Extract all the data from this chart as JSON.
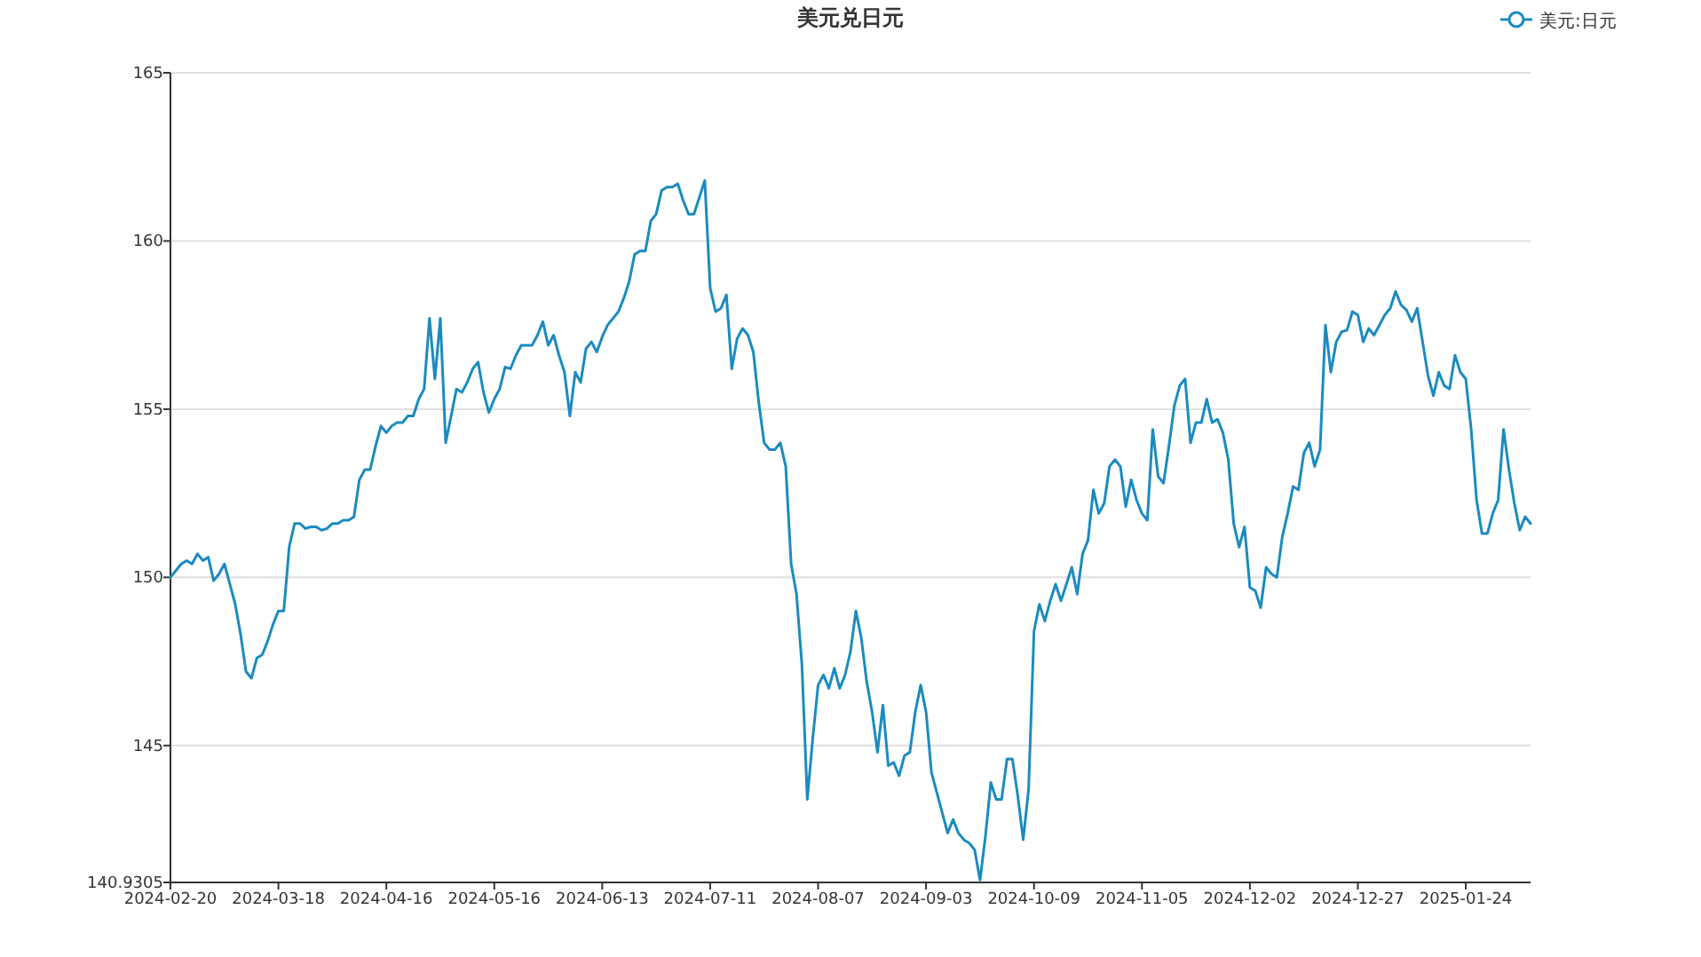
{
  "chart_data": {
    "type": "line",
    "title": "美元兑日元",
    "legend": "top right",
    "grid": "y",
    "ylim": [
      140.9305,
      165
    ],
    "yticks": [
      140.9305,
      145,
      150,
      155,
      160,
      165
    ],
    "categories": [
      "2024-02-20",
      null,
      null,
      null,
      null,
      null,
      null,
      null,
      null,
      null,
      null,
      null,
      null,
      null,
      null,
      null,
      null,
      null,
      null,
      null,
      "2024-03-18",
      null,
      null,
      null,
      null,
      null,
      null,
      null,
      null,
      null,
      null,
      null,
      null,
      null,
      null,
      null,
      null,
      null,
      null,
      null,
      "2024-04-16",
      null,
      null,
      null,
      null,
      null,
      null,
      null,
      null,
      null,
      null,
      null,
      null,
      null,
      null,
      null,
      null,
      null,
      null,
      null,
      "2024-05-16",
      null,
      null,
      null,
      null,
      null,
      null,
      null,
      null,
      null,
      null,
      null,
      null,
      null,
      null,
      null,
      null,
      null,
      null,
      null,
      "2024-06-13",
      null,
      null,
      null,
      null,
      null,
      null,
      null,
      null,
      null,
      null,
      null,
      null,
      null,
      null,
      null,
      null,
      null,
      null,
      null,
      "2024-07-11",
      null,
      null,
      null,
      null,
      null,
      null,
      null,
      null,
      null,
      null,
      null,
      null,
      null,
      null,
      null,
      null,
      null,
      null,
      null,
      "2024-08-07",
      null,
      null,
      null,
      null,
      null,
      null,
      null,
      null,
      null,
      null,
      null,
      null,
      null,
      null,
      null,
      null,
      null,
      null,
      null,
      "2024-09-03",
      null,
      null,
      null,
      null,
      null,
      null,
      null,
      null,
      null,
      null,
      null,
      null,
      null,
      null,
      null,
      null,
      null,
      null,
      null,
      "2024-10-09",
      null,
      null,
      null,
      null,
      null,
      null,
      null,
      null,
      null,
      null,
      null,
      null,
      null,
      null,
      null,
      null,
      null,
      null,
      null,
      "2024-11-05",
      null,
      null,
      null,
      null,
      null,
      null,
      null,
      null,
      null,
      null,
      null,
      null,
      null,
      null,
      null,
      null,
      null,
      null,
      null,
      "2024-12-02",
      null,
      null,
      null,
      null,
      null,
      null,
      null,
      null,
      null,
      null,
      null,
      null,
      null,
      null,
      null,
      null,
      null,
      null,
      null,
      "2024-12-27",
      null,
      null,
      null,
      null,
      null,
      null,
      null,
      null,
      null,
      null,
      null,
      null,
      null,
      null,
      null,
      null,
      null,
      null,
      null,
      "2025-01-24",
      null,
      null,
      null,
      null,
      null,
      null,
      null,
      null,
      null,
      null,
      null,
      null
    ],
    "series": [
      {
        "name": "美元:日元",
        "color": "#1a8bbf",
        "values": [
          150.0,
          150.2,
          150.4,
          150.5,
          150.4,
          150.7,
          150.5,
          150.6,
          149.9,
          150.1,
          150.4,
          149.8,
          149.2,
          148.3,
          147.2,
          147.0,
          147.6,
          147.7,
          148.1,
          148.6,
          149.0,
          149.0,
          150.9,
          151.6,
          151.6,
          151.45,
          151.5,
          151.5,
          151.4,
          151.45,
          151.6,
          151.6,
          151.7,
          151.7,
          151.8,
          152.9,
          153.2,
          153.2,
          153.9,
          154.5,
          154.3,
          154.5,
          154.6,
          154.6,
          154.8,
          154.8,
          155.3,
          155.6,
          157.7,
          155.9,
          157.7,
          154.0,
          154.8,
          155.6,
          155.5,
          155.8,
          156.2,
          156.4,
          155.5,
          154.9,
          155.3,
          155.6,
          156.25,
          156.2,
          156.6,
          156.9,
          156.9,
          156.9,
          157.2,
          157.6,
          156.9,
          157.2,
          156.6,
          156.1,
          154.8,
          156.1,
          155.8,
          156.8,
          157.0,
          156.7,
          157.15,
          157.5,
          157.7,
          157.9,
          158.3,
          158.8,
          159.6,
          159.7,
          159.7,
          160.6,
          160.8,
          161.5,
          161.6,
          161.6,
          161.7,
          161.2,
          160.8,
          160.8,
          161.3,
          161.8,
          158.6,
          157.9,
          158.0,
          158.4,
          156.2,
          157.1,
          157.4,
          157.2,
          156.7,
          155.2,
          154.0,
          153.8,
          153.8,
          154.0,
          153.3,
          150.4,
          149.5,
          147.4,
          143.4,
          145.2,
          146.8,
          147.1,
          146.7,
          147.3,
          146.7,
          147.1,
          147.8,
          149.0,
          148.2,
          146.9,
          146.0,
          144.8,
          146.2,
          144.4,
          144.5,
          144.1,
          144.7,
          144.8,
          146.0,
          146.8,
          146.0,
          144.2,
          143.6,
          143.0,
          142.4,
          142.8,
          142.4,
          142.2,
          142.1,
          141.9,
          141.0,
          142.3,
          143.9,
          143.4,
          143.4,
          144.6,
          144.6,
          143.5,
          142.2,
          143.7,
          148.4,
          149.2,
          148.7,
          149.3,
          149.8,
          149.3,
          149.8,
          150.3,
          149.5,
          150.7,
          151.1,
          152.6,
          151.9,
          152.2,
          153.3,
          153.5,
          153.3,
          152.1,
          152.9,
          152.3,
          151.9,
          151.7,
          154.4,
          153.0,
          152.8,
          153.9,
          155.1,
          155.7,
          155.9,
          154.0,
          154.6,
          154.6,
          155.3,
          154.6,
          154.7,
          154.3,
          153.5,
          151.6,
          150.9,
          151.5,
          149.7,
          149.6,
          149.1,
          150.3,
          150.1,
          150.0,
          151.2,
          151.9,
          152.7,
          152.6,
          153.7,
          154.0,
          153.3,
          153.8,
          157.5,
          156.1,
          157.0,
          157.3,
          157.35,
          157.9,
          157.8,
          157.0,
          157.4,
          157.2,
          157.5,
          157.8,
          158.0,
          158.5,
          158.1,
          157.95,
          157.6,
          158.0,
          157.0,
          156.0,
          155.4,
          156.1,
          155.7,
          155.6,
          156.6,
          156.1,
          155.9,
          154.4,
          152.3,
          151.3,
          151.3,
          151.9,
          152.3,
          154.4,
          153.2,
          152.2,
          151.4,
          151.8,
          151.6
        ]
      }
    ]
  }
}
